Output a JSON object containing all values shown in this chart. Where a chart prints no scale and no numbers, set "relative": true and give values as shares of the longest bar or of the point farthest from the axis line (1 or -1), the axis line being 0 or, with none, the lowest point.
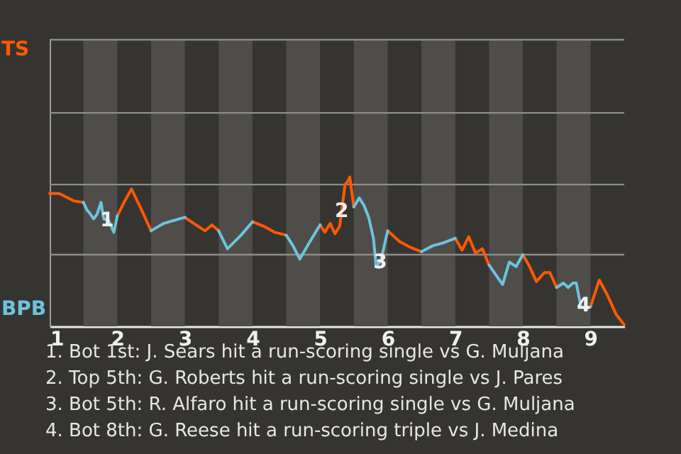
{
  "chart_data": {
    "type": "line",
    "relative": true,
    "tick_labels": "x",
    "ref_lines": [
      {
        "axis": "y",
        "value": 0.48,
        "color": "#8c8c8c"
      },
      {
        "axis": "y",
        "value": 0.95,
        "color": "#8c8c8c"
      },
      {
        "axis": "y",
        "value": 1.43,
        "color": "#8c8c8c"
      },
      {
        "axis": "y",
        "value": 1.92,
        "color": "#8c8c8c"
      }
    ],
    "line_style": "solid",
    "marker": "none",
    "x": [
      1,
      1.14,
      1.36,
      1.5,
      1.55,
      1.59,
      1.65,
      1.7,
      1.76,
      1.8,
      1.87,
      1.95,
      2,
      2.1,
      2.21,
      2.35,
      2.5,
      2.69,
      3,
      3.13,
      3.3,
      3.4,
      3.5,
      3.63,
      3.83,
      4,
      4.17,
      4.33,
      4.5,
      4.6,
      4.7,
      4.84,
      5,
      5.07,
      5.15,
      5.22,
      5.29,
      5.37,
      5.41,
      5.44,
      5.5,
      5.58,
      5.65,
      5.72,
      5.79,
      5.83,
      5.9,
      6,
      6.17,
      6.33,
      6.5,
      6.67,
      6.83,
      7,
      7.1,
      7.2,
      7.3,
      7.4,
      7.5,
      7.7,
      7.8,
      7.9,
      8,
      8.1,
      8.2,
      8.32,
      8.4,
      8.5,
      8.6,
      8.67,
      8.74,
      8.79,
      8.86,
      8.93,
      9,
      9.13,
      9.25,
      9.38,
      9.5
    ],
    "xlim": [
      1,
      9.5
    ],
    "xticks": [
      1,
      2,
      3,
      4,
      5,
      6,
      7,
      8,
      9
    ],
    "series": [
      {
        "name": "TS",
        "color": "#ff5a00",
        "values": [
          0.89,
          0.89,
          0.84,
          0.83,
          null,
          null,
          null,
          null,
          null,
          null,
          null,
          null,
          0.74,
          0.83,
          0.92,
          0.79,
          0.64,
          null,
          0.73,
          0.69,
          0.64,
          0.68,
          0.64,
          null,
          null,
          0.7,
          0.67,
          0.63,
          0.61,
          null,
          null,
          null,
          0.68,
          0.63,
          0.69,
          0.62,
          0.67,
          0.95,
          0.97,
          1,
          0.8,
          null,
          null,
          null,
          null,
          null,
          null,
          0.64,
          0.57,
          0.53,
          0.5,
          null,
          null,
          0.59,
          0.51,
          0.6,
          0.49,
          0.52,
          0.41,
          null,
          null,
          null,
          0.48,
          0.4,
          0.3,
          0.36,
          0.36,
          0.26,
          null,
          null,
          null,
          null,
          null,
          null,
          0.13,
          0.31,
          0.21,
          0.08,
          0.01
        ]
      },
      {
        "name": "BPB",
        "color": "#6ec3dc",
        "values": [
          null,
          null,
          null,
          0.83,
          0.78,
          0.76,
          0.72,
          0.75,
          0.83,
          0.72,
          0.71,
          0.63,
          0.74,
          null,
          null,
          null,
          0.64,
          0.69,
          0.73,
          null,
          null,
          null,
          0.64,
          0.52,
          0.61,
          0.7,
          null,
          null,
          0.61,
          0.54,
          0.45,
          0.56,
          0.68,
          null,
          null,
          null,
          null,
          null,
          null,
          null,
          0.8,
          0.86,
          0.81,
          0.73,
          0.59,
          0.4,
          0.44,
          0.64,
          null,
          null,
          0.5,
          0.54,
          0.56,
          0.59,
          null,
          null,
          null,
          null,
          0.41,
          0.28,
          0.43,
          0.4,
          0.48,
          null,
          null,
          null,
          null,
          0.26,
          0.29,
          0.26,
          0.29,
          0.29,
          0.13,
          0.12,
          0.13,
          null,
          null,
          null,
          null
        ]
      }
    ],
    "bands": [
      {
        "axis": "x",
        "from": 1.5,
        "to": 2,
        "color": "#4f4d4a"
      },
      {
        "axis": "x",
        "from": 2.5,
        "to": 3,
        "color": "#4f4d4a"
      },
      {
        "axis": "x",
        "from": 3.5,
        "to": 4,
        "color": "#4f4d4a"
      },
      {
        "axis": "x",
        "from": 4.5,
        "to": 5,
        "color": "#4f4d4a"
      },
      {
        "axis": "x",
        "from": 5.5,
        "to": 6,
        "color": "#4f4d4a"
      },
      {
        "axis": "x",
        "from": 6.5,
        "to": 7,
        "color": "#4f4d4a"
      },
      {
        "axis": "x",
        "from": 7.5,
        "to": 8,
        "color": "#4f4d4a"
      },
      {
        "axis": "x",
        "from": 8.5,
        "to": 9,
        "color": "#4f4d4a"
      }
    ],
    "annotations": [
      {
        "text": "1",
        "x": 1.85,
        "y": 0.71
      },
      {
        "text": "2",
        "x": 5.32,
        "y": 0.77
      },
      {
        "text": "3",
        "x": 5.89,
        "y": 0.43
      },
      {
        "text": "4",
        "x": 8.9,
        "y": 0.14
      },
      "1. Bot 1st: J. Sears hit a run-scoring single vs G. Muljana",
      "2. Top 5th: G. Roberts hit a run-scoring single vs J. Pares",
      "3. Bot 5th: R. Alfaro hit a run-scoring single vs G. Muljana",
      "4. Bot 8th: G. Reese hit a run-scoring triple vs J. Medina"
    ]
  }
}
